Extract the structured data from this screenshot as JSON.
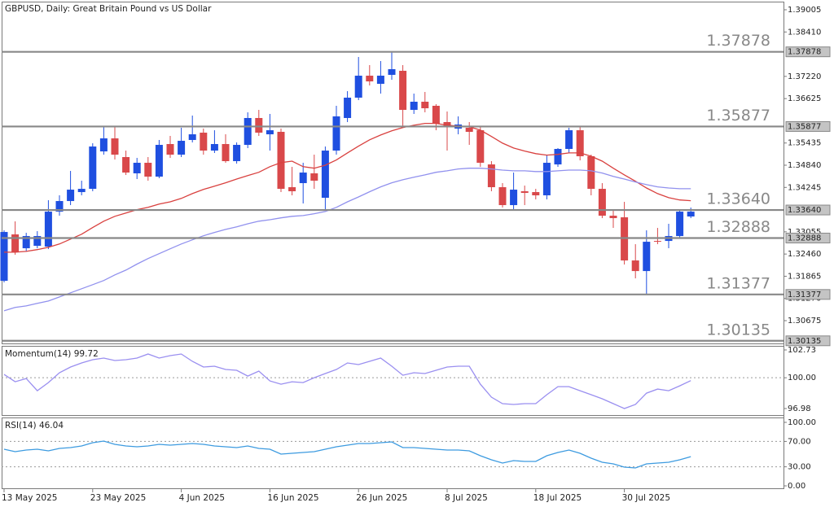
{
  "chart_data": [
    {
      "type": "candlestick",
      "title": "GBPUSD, Daily:  Great Britain Pound vs US Dollar",
      "categories": [
        "13 May 2025",
        null,
        null,
        null,
        null,
        null,
        null,
        null,
        "23 May 2025",
        null,
        null,
        null,
        null,
        null,
        null,
        null,
        "4 Jun 2025",
        null,
        null,
        null,
        null,
        null,
        null,
        null,
        "16 Jun 2025",
        null,
        null,
        null,
        null,
        null,
        null,
        null,
        "26 Jun 2025",
        null,
        null,
        null,
        null,
        null,
        null,
        null,
        "8 Jul 2025",
        null,
        null,
        null,
        null,
        null,
        null,
        null,
        "18 Jul 2025",
        null,
        null,
        null,
        null,
        null,
        null,
        null,
        "30 Jul 2025",
        null,
        null,
        null,
        null,
        null,
        null
      ],
      "open": [
        1.31743,
        1.32986,
        1.32615,
        1.3268,
        1.32659,
        1.33596,
        1.3388,
        1.3412,
        1.34207,
        1.3521,
        1.35559,
        1.35058,
        1.34622,
        1.34905,
        1.34534,
        1.35407,
        1.35123,
        1.35516,
        1.35712,
        1.35232,
        1.35407,
        1.34949,
        1.35385,
        1.36105,
        1.35668,
        1.35734,
        1.34251,
        1.3436,
        1.34622,
        1.33967,
        1.35232,
        1.36105,
        1.3665,
        1.37239,
        1.37021,
        1.37261,
        1.3737,
        1.36323,
        1.36541,
        1.36432,
        1.35996,
        1.35821,
        1.35843,
        1.35777,
        1.34861,
        1.34251,
        1.33771,
        1.34142,
        1.3412,
        1.34033,
        1.34861,
        1.35276,
        1.35777,
        1.3508,
        1.34207,
        1.33487,
        1.33444,
        1.32288,
        1.32004,
        1.32811,
        1.32811,
        1.32942,
        1.33466
      ],
      "high": [
        1.33095,
        1.33335,
        1.33029,
        1.33073,
        1.33902,
        1.34033,
        1.34687,
        1.34425,
        1.35428,
        1.35886,
        1.35865,
        1.35232,
        1.35036,
        1.35058,
        1.35516,
        1.35625,
        1.35843,
        1.3617,
        1.35821,
        1.35777,
        1.35668,
        1.3545,
        1.36257,
        1.36323,
        1.36214,
        1.35821,
        1.34796,
        1.34905,
        1.35123,
        1.35341,
        1.36432,
        1.36824,
        1.3774,
        1.37522,
        1.37631,
        1.37878,
        1.37522,
        1.36759,
        1.36803,
        1.36475,
        1.36279,
        1.36148,
        1.35996,
        1.35886,
        1.34949,
        1.3436,
        1.34643,
        1.34294,
        1.34207,
        1.35123,
        1.35298,
        1.35843,
        1.35886,
        1.35123,
        1.3436,
        1.3364,
        1.33858,
        1.32724,
        1.33095,
        1.3316,
        1.33269,
        1.33662,
        1.33705
      ],
      "low": [
        1.31699,
        1.32441,
        1.32528,
        1.32615,
        1.32593,
        1.33487,
        1.33771,
        1.34033,
        1.34142,
        1.35123,
        1.34992,
        1.34578,
        1.34469,
        1.34425,
        1.34491,
        1.35036,
        1.35058,
        1.3545,
        1.35123,
        1.35167,
        1.34905,
        1.34883,
        1.35298,
        1.35625,
        1.35232,
        1.3412,
        1.34033,
        1.33815,
        1.34207,
        1.33662,
        1.35123,
        1.35996,
        1.36584,
        1.36977,
        1.36759,
        1.3713,
        1.35886,
        1.36214,
        1.36257,
        1.35777,
        1.35232,
        1.35668,
        1.35385,
        1.34796,
        1.34142,
        1.33705,
        1.33662,
        1.33771,
        1.33924,
        1.33924,
        1.34796,
        1.35167,
        1.3497,
        1.34033,
        1.33422,
        1.3316,
        1.32179,
        1.31808,
        1.31377,
        1.32724,
        1.32615,
        1.32877,
        1.33422
      ],
      "close": [
        1.33051,
        1.32506,
        1.32942,
        1.32942,
        1.33596,
        1.3388,
        1.34185,
        1.34207,
        1.35341,
        1.35559,
        1.35123,
        1.34643,
        1.34905,
        1.34534,
        1.35385,
        1.35123,
        1.35494,
        1.35668,
        1.35232,
        1.35407,
        1.34949,
        1.35385,
        1.36105,
        1.35712,
        1.35777,
        1.34207,
        1.34142,
        1.34643,
        1.34425,
        1.35232,
        1.36148,
        1.3665,
        1.37239,
        1.37086,
        1.37239,
        1.37413,
        1.36323,
        1.36541,
        1.36366,
        1.35952,
        1.35886,
        1.3593,
        1.35734,
        1.34905,
        1.34251,
        1.33771,
        1.34185,
        1.34098,
        1.34033,
        1.34905,
        1.35276,
        1.35777,
        1.3508,
        1.34207,
        1.33487,
        1.33422,
        1.32288,
        1.32004,
        1.32789,
        1.32789,
        1.32942,
        1.33596,
        1.33596
      ],
      "up_color": "#1f4fe0",
      "down_color": "#d9484a",
      "overlays": [
        {
          "color": "#d9413f",
          "values": [
            1.3251,
            1.3251,
            1.3253,
            1.3258,
            1.3264,
            1.3273,
            1.3286,
            1.3299,
            1.3317,
            1.3334,
            1.3347,
            1.3356,
            1.3365,
            1.3371,
            1.338,
            1.3386,
            1.3395,
            1.3408,
            1.3419,
            1.3428,
            1.3437,
            1.3447,
            1.3456,
            1.3465,
            1.348,
            1.3491,
            1.3495,
            1.348,
            1.3476,
            1.3484,
            1.3498,
            1.3517,
            1.3535,
            1.3552,
            1.3565,
            1.3576,
            1.3585,
            1.3591,
            1.3596,
            1.3596,
            1.3591,
            1.3589,
            1.3587,
            1.3578,
            1.3561,
            1.3543,
            1.353,
            1.3522,
            1.3515,
            1.3511,
            1.3513,
            1.3517,
            1.3517,
            1.3508,
            1.3495,
            1.3476,
            1.3458,
            1.3441,
            1.3423,
            1.3408,
            1.3397,
            1.3391,
            1.3389
          ]
        },
        {
          "color": "#9191ee",
          "values": [
            1.3094,
            1.3103,
            1.3107,
            1.3114,
            1.312,
            1.3131,
            1.3142,
            1.3153,
            1.3164,
            1.3175,
            1.319,
            1.3203,
            1.3219,
            1.3234,
            1.3247,
            1.326,
            1.3273,
            1.3284,
            1.3295,
            1.3304,
            1.3312,
            1.3319,
            1.3327,
            1.3334,
            1.3338,
            1.3343,
            1.3347,
            1.3349,
            1.3354,
            1.336,
            1.3371,
            1.3386,
            1.3399,
            1.3413,
            1.3426,
            1.3437,
            1.3445,
            1.3452,
            1.3458,
            1.3465,
            1.3469,
            1.3474,
            1.3476,
            1.3476,
            1.3474,
            1.3471,
            1.3469,
            1.3469,
            1.3467,
            1.3467,
            1.3469,
            1.3471,
            1.3471,
            1.3469,
            1.3463,
            1.3454,
            1.3447,
            1.3439,
            1.3432,
            1.3426,
            1.3423,
            1.3421,
            1.3421
          ]
        }
      ],
      "levels": [
        1.37878,
        1.35877,
        {
          "value": 1.3364,
          "label": "1.33640"
        },
        1.32888,
        1.31377,
        1.30135
      ],
      "level_color": "#888888",
      "ylim": [
        1.30043,
        1.39223
      ],
      "yticks": [
        1.39005,
        {
          "value": 1.3841,
          "label": "1.38410"
        },
        {
          "value": 1.3722,
          "label": "1.37220"
        },
        1.36625,
        1.35435,
        {
          "value": 1.3484,
          "label": "1.34840"
        },
        1.34245,
        1.33055,
        {
          "value": 1.3246,
          "label": "1.32460"
        },
        1.31865,
        {
          "value": 1.3127,
          "label": "1.31270"
        },
        1.30675
      ]
    },
    {
      "type": "line",
      "title": "Momentum(14) 99.72",
      "color": "#9a8ff0",
      "values": [
        100.33,
        99.61,
        99.93,
        98.73,
        99.53,
        100.49,
        101.05,
        101.45,
        101.77,
        101.93,
        101.69,
        101.77,
        101.93,
        102.33,
        101.93,
        102.17,
        102.33,
        101.61,
        101.05,
        101.13,
        100.81,
        100.73,
        100.17,
        100.65,
        99.69,
        99.37,
        99.61,
        99.53,
        100.01,
        100.41,
        100.81,
        101.45,
        101.29,
        101.61,
        101.93,
        101.13,
        100.25,
        100.49,
        100.41,
        100.73,
        101.05,
        101.13,
        101.13,
        99.37,
        98.1,
        97.46,
        97.38,
        97.46,
        97.46,
        98.34,
        99.13,
        99.13,
        98.73,
        98.34,
        97.94,
        97.46,
        96.98,
        97.38,
        98.49,
        98.89,
        98.73,
        99.21,
        99.72
      ],
      "levels": [
        100
      ],
      "ylim": [
        96.26,
        103.05
      ],
      "yticks": [
        102.73,
        {
          "value": 100,
          "label": "100.00"
        },
        96.98
      ]
    },
    {
      "type": "line",
      "title": "RSI(14) 46.04",
      "color": "#3d9be0",
      "values": [
        57.69,
        53.85,
        56.41,
        57.69,
        55.13,
        58.97,
        60.26,
        62.82,
        67.95,
        70.51,
        65.38,
        62.82,
        61.54,
        62.82,
        65.38,
        64.1,
        65.38,
        66.67,
        65.38,
        62.82,
        61.54,
        60.26,
        62.82,
        58.97,
        57.69,
        50.0,
        51.28,
        52.56,
        53.85,
        57.69,
        61.54,
        64.1,
        66.67,
        66.67,
        67.95,
        69.23,
        60.26,
        60.26,
        58.97,
        57.69,
        56.41,
        56.41,
        55.13,
        47.44,
        41.03,
        35.9,
        39.74,
        38.46,
        38.46,
        47.44,
        52.56,
        56.41,
        51.28,
        43.59,
        37.18,
        34.62,
        29.49,
        28.21,
        34.62,
        35.9,
        37.18,
        41.03,
        46.04
      ],
      "levels": [
        70,
        30
      ],
      "ylim": [
        -5.1,
        106.4
      ],
      "yticks": [
        {
          "value": 100,
          "label": "100.00"
        },
        {
          "value": 70,
          "label": "70.00"
        },
        {
          "value": 30,
          "label": "30.00"
        },
        {
          "value": 0,
          "label": "0.00"
        }
      ]
    }
  ]
}
